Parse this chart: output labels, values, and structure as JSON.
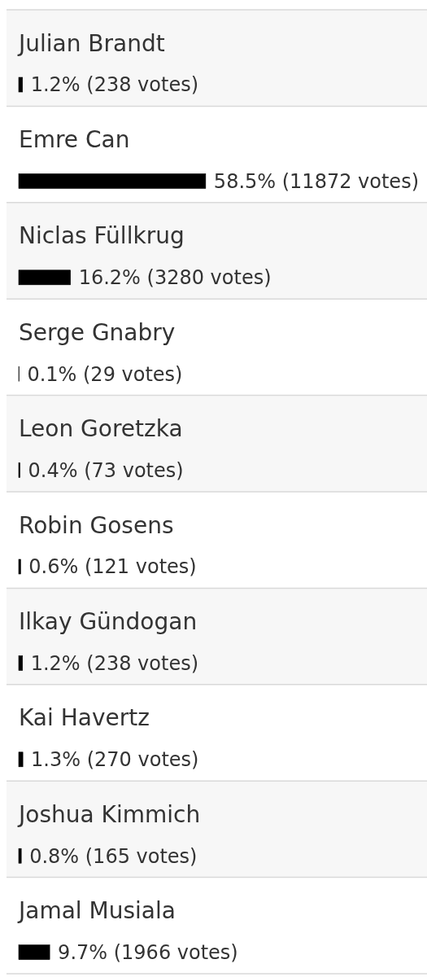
{
  "chart_data": {
    "type": "bar",
    "orientation": "horizontal",
    "categories": [
      "Julian Brandt",
      "Emre Can",
      "Niclas Füllkrug",
      "Serge Gnabry",
      "Leon Goretzka",
      "Robin Gosens",
      "Ilkay Gündogan",
      "Kai Havertz",
      "Joshua Kimmich",
      "Jamal Musiala"
    ],
    "values": [
      1.2,
      58.5,
      16.2,
      0.1,
      0.4,
      0.6,
      1.2,
      1.3,
      0.8,
      9.7
    ],
    "value_labels": [
      "1.2% (238 votes)",
      "58.5% (11872 votes)",
      "16.2% (3280 votes)",
      "0.1% (29 votes)",
      "0.4% (73 votes)",
      "0.6% (121 votes)",
      "1.2% (238 votes)",
      "1.3% (270 votes)",
      "0.8% (165 votes)",
      "9.7% (1966 votes)"
    ],
    "color": "#000000"
  }
}
